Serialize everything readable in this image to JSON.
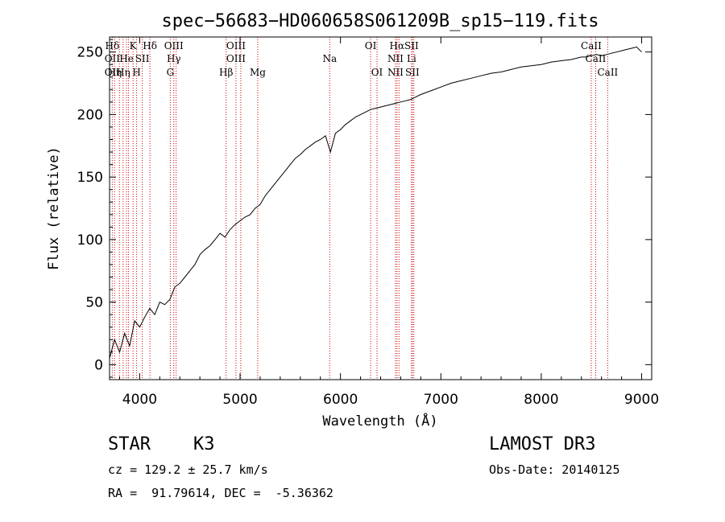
{
  "chart_data": {
    "type": "line",
    "title": "spec−56683−HD060658S061209B_sp15−119.fits",
    "xlabel": "Wavelength (Å)",
    "ylabel": "Flux (relative)",
    "xlim": [
      3700,
      9100
    ],
    "ylim": [
      -12,
      262
    ],
    "x_ticks": [
      4000,
      5000,
      6000,
      7000,
      8000,
      9000
    ],
    "y_ticks": [
      0,
      50,
      100,
      150,
      200,
      250
    ],
    "grid": false,
    "line_color": "#000000",
    "marker_line_color": "#cc0000",
    "series": [
      {
        "x": [
          3700,
          3750,
          3800,
          3850,
          3900,
          3950,
          4000,
          4050,
          4100,
          4150,
          4200,
          4250,
          4300,
          4350,
          4400,
          4450,
          4500,
          4550,
          4600,
          4650,
          4700,
          4750,
          4800,
          4850,
          4900,
          4950,
          5000,
          5050,
          5100,
          5150,
          5200,
          5250,
          5300,
          5350,
          5400,
          5450,
          5500,
          5550,
          5600,
          5650,
          5700,
          5750,
          5800,
          5850,
          5900,
          5950,
          6000,
          6050,
          6100,
          6150,
          6200,
          6250,
          6300,
          6350,
          6400,
          6450,
          6500,
          6550,
          6600,
          6650,
          6700,
          6750,
          6800,
          6900,
          7000,
          7100,
          7200,
          7300,
          7400,
          7500,
          7600,
          7700,
          7800,
          7900,
          8000,
          8100,
          8200,
          8300,
          8400,
          8450,
          8500,
          8550,
          8600,
          8650,
          8700,
          8750,
          8800,
          8850,
          8900,
          8950,
          9000
        ],
        "y": [
          5,
          20,
          10,
          25,
          15,
          35,
          30,
          38,
          45,
          40,
          50,
          48,
          52,
          62,
          65,
          70,
          75,
          80,
          88,
          92,
          95,
          100,
          105,
          102,
          108,
          112,
          115,
          118,
          120,
          125,
          128,
          135,
          140,
          145,
          150,
          155,
          160,
          165,
          168,
          172,
          175,
          178,
          180,
          183,
          170,
          185,
          188,
          192,
          195,
          198,
          200,
          202,
          204,
          205,
          206,
          207,
          208,
          209,
          210,
          211,
          212,
          214,
          216,
          219,
          222,
          225,
          227,
          229,
          231,
          233,
          234,
          236,
          238,
          239,
          240,
          242,
          243,
          244,
          246,
          246,
          247,
          248,
          247,
          248,
          249,
          250,
          251,
          252,
          253,
          254,
          250
        ]
      }
    ],
    "lines": [
      {
        "wl": 3727,
        "top": "Hδ",
        "mid": "OII",
        "low": "OII"
      },
      {
        "wl": 3750,
        "top": "",
        "mid": "",
        "low": "Hη"
      },
      {
        "wl": 3798,
        "top": "",
        "mid": "",
        "low": ""
      },
      {
        "wl": 3835,
        "top": "",
        "mid": "",
        "low": "Hη"
      },
      {
        "wl": 3869,
        "top": "",
        "mid": "He",
        "low": ""
      },
      {
        "wl": 3889,
        "top": "",
        "mid": "",
        "low": ""
      },
      {
        "wl": 3934,
        "top": "K",
        "mid": "",
        "low": ""
      },
      {
        "wl": 3970,
        "top": "",
        "mid": "",
        "low": "H"
      },
      {
        "wl": 4026,
        "top": "",
        "mid": "SII",
        "low": ""
      },
      {
        "wl": 4102,
        "top": "Hδ",
        "mid": "",
        "low": ""
      },
      {
        "wl": 4305,
        "top": "",
        "mid": "",
        "low": "G"
      },
      {
        "wl": 4340,
        "top": "OIII",
        "mid": "Hγ",
        "low": ""
      },
      {
        "wl": 4363,
        "top": "",
        "mid": "",
        "low": ""
      },
      {
        "wl": 4861,
        "top": "",
        "mid": "",
        "low": "Hβ"
      },
      {
        "wl": 4959,
        "top": "OIII",
        "mid": "OIII",
        "low": ""
      },
      {
        "wl": 5007,
        "top": "",
        "mid": "",
        "low": ""
      },
      {
        "wl": 5176,
        "top": "",
        "mid": "",
        "low": "Mg"
      },
      {
        "wl": 5893,
        "top": "",
        "mid": "Na",
        "low": ""
      },
      {
        "wl": 6300,
        "top": "OI",
        "mid": "",
        "low": ""
      },
      {
        "wl": 6364,
        "top": "",
        "mid": "",
        "low": "OI"
      },
      {
        "wl": 6548,
        "top": "",
        "mid": "NII",
        "low": "NII"
      },
      {
        "wl": 6563,
        "top": "Hα",
        "mid": "",
        "low": ""
      },
      {
        "wl": 6583,
        "top": "",
        "mid": "",
        "low": ""
      },
      {
        "wl": 6708,
        "top": "SII",
        "mid": "Li",
        "low": ""
      },
      {
        "wl": 6716,
        "top": "",
        "mid": "",
        "low": "SII"
      },
      {
        "wl": 6731,
        "top": "",
        "mid": "",
        "low": ""
      },
      {
        "wl": 8498,
        "top": "CaII",
        "mid": "",
        "low": ""
      },
      {
        "wl": 8542,
        "top": "",
        "mid": "CaII",
        "low": ""
      },
      {
        "wl": 8662,
        "top": "",
        "mid": "",
        "low": "CaII"
      }
    ]
  },
  "info": {
    "object": "STAR    K3",
    "survey": "LAMOST DR3",
    "cz": "cz = 129.2 ± 25.7 km/s",
    "obs_date": "Obs-Date: 20140125",
    "coords": "RA =  91.79614, DEC =  -5.36362"
  }
}
